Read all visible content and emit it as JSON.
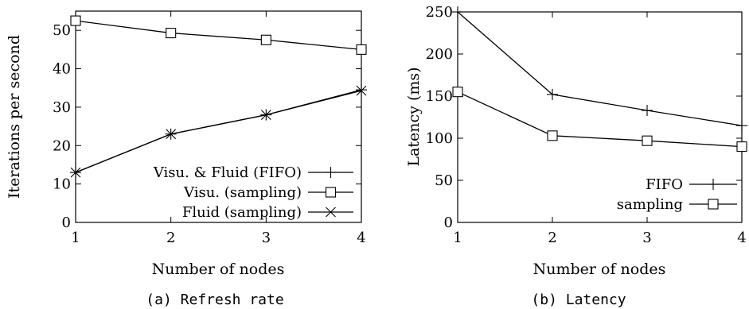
{
  "chart_data": [
    {
      "type": "line",
      "caption": "(a) Refresh rate",
      "xlabel": "Number of nodes",
      "ylabel": "Iterations per second",
      "x": [
        1,
        2,
        3,
        4
      ],
      "xlim": [
        1,
        4
      ],
      "ylim": [
        0,
        55
      ],
      "xticks": [
        "1",
        "2",
        "3",
        "4"
      ],
      "yticks": [
        "0",
        "10",
        "20",
        "30",
        "40",
        "50"
      ],
      "grid": false,
      "legend_position": "bottom-right",
      "series": [
        {
          "name": "Visu. & Fluid (FIFO)",
          "marker": "plus",
          "values": [
            13,
            23,
            28,
            34.5
          ]
        },
        {
          "name": "Visu. (sampling)",
          "marker": "square",
          "values": [
            52.5,
            49.3,
            47.5,
            45
          ]
        },
        {
          "name": "Fluid (sampling)",
          "marker": "cross",
          "values": [
            13,
            23,
            28,
            34.3
          ]
        }
      ]
    },
    {
      "type": "line",
      "caption": "(b) Latency",
      "xlabel": "Number of nodes",
      "ylabel": "Latency (ms)",
      "x": [
        1,
        2,
        3,
        4
      ],
      "xlim": [
        1,
        4
      ],
      "ylim": [
        0,
        250
      ],
      "xticks": [
        "1",
        "2",
        "3",
        "4"
      ],
      "yticks": [
        "0",
        "50",
        "100",
        "150",
        "200",
        "250"
      ],
      "grid": false,
      "legend_position": "bottom-right",
      "series": [
        {
          "name": "FIFO",
          "marker": "plus",
          "values": [
            250,
            152,
            133,
            115
          ]
        },
        {
          "name": "sampling",
          "marker": "square",
          "values": [
            155,
            103,
            97,
            90
          ]
        }
      ]
    }
  ]
}
